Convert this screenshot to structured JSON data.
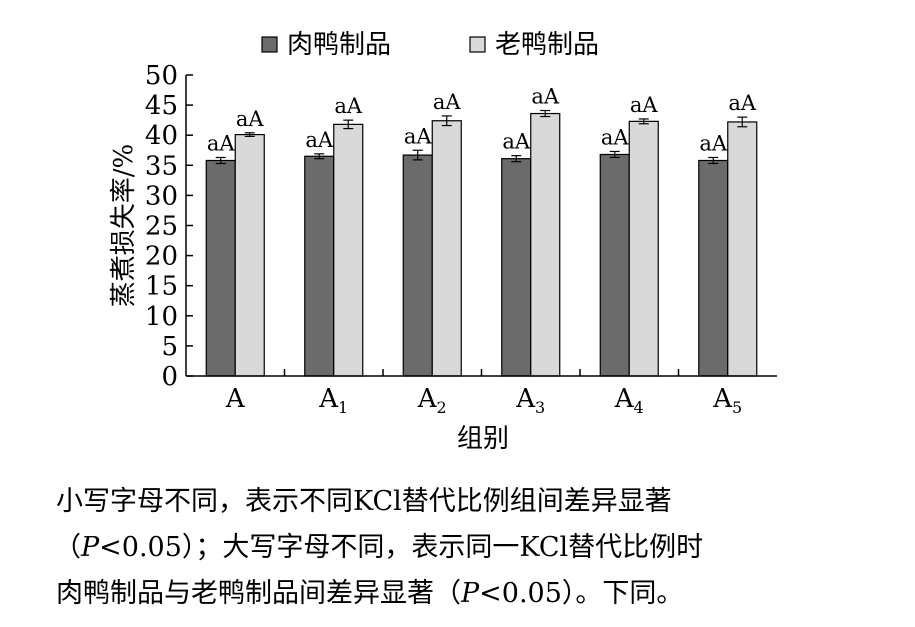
{
  "chart_data": {
    "type": "bar",
    "categories": [
      {
        "base": "A",
        "sub": ""
      },
      {
        "base": "A",
        "sub": "1"
      },
      {
        "base": "A",
        "sub": "2"
      },
      {
        "base": "A",
        "sub": "3"
      },
      {
        "base": "A",
        "sub": "4"
      },
      {
        "base": "A",
        "sub": "5"
      }
    ],
    "series": [
      {
        "name": "肉鸭制品",
        "color": "#6b6b6b",
        "values": [
          35.8,
          36.5,
          36.7,
          36.1,
          36.8,
          35.8
        ],
        "errors": [
          0.5,
          0.4,
          0.8,
          0.5,
          0.5,
          0.5
        ],
        "labels": [
          "aA",
          "aA",
          "aA",
          "aA",
          "aA",
          "aA"
        ]
      },
      {
        "name": "老鸭制品",
        "color": "#d9d9d9",
        "values": [
          40.1,
          41.8,
          42.4,
          43.6,
          42.3,
          42.2
        ],
        "errors": [
          0.3,
          0.7,
          0.8,
          0.5,
          0.4,
          0.8
        ],
        "labels": [
          "aA",
          "aA",
          "aA",
          "aA",
          "aA",
          "aA"
        ]
      }
    ],
    "xlabel": "组别",
    "ylabel": "蒸煮损失率/%",
    "ylim": [
      0,
      50
    ],
    "yticks": [
      0,
      5,
      10,
      15,
      20,
      25,
      30,
      35,
      40,
      45,
      50
    ],
    "grid": false,
    "legend_position": "top-center"
  },
  "caption": {
    "line1": "小写字母不同，表示不同KCl替代比例组间差异显著",
    "line2_pre": "（",
    "line2_p": "P",
    "line2_post": "<0.05）；大写字母不同，表示同一KCl替代比例时",
    "line3_pre": "肉鸭制品与老鸭制品间差异显著（",
    "line3_p": "P",
    "line3_post": "<0.05）。下同。"
  }
}
